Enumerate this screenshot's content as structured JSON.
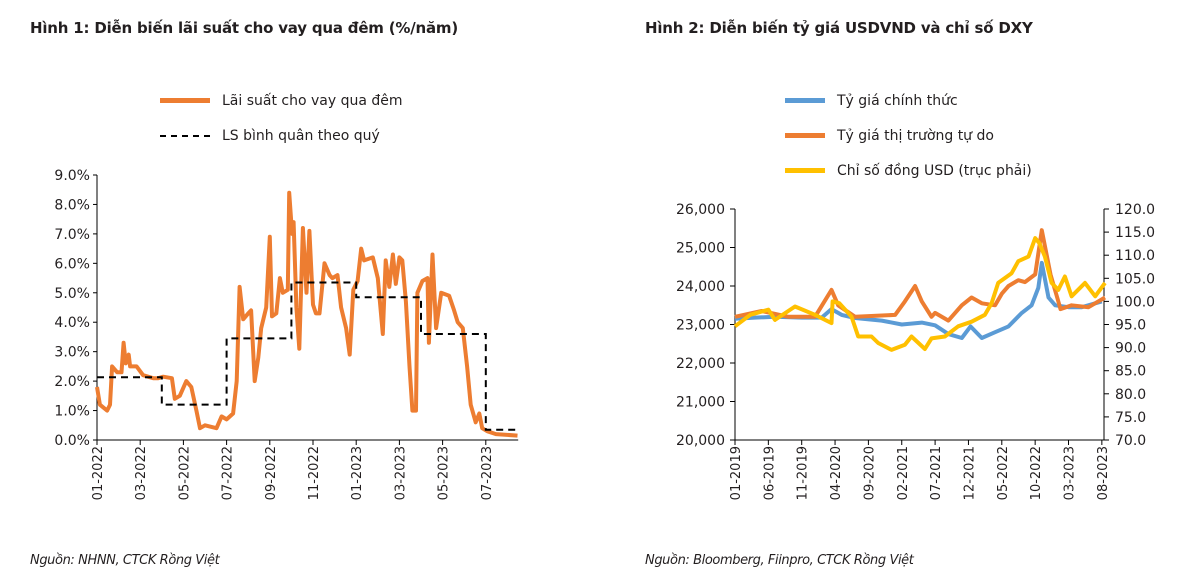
{
  "figure1": {
    "title": "Hình 1: Diễn biến lãi suất cho vay qua đêm (%/năm)",
    "source": "Nguồn: NHNN, CTCK Rồng Việt"
  },
  "figure2": {
    "title": "Hình 2: Diễn biến tỷ giá USDVND và chỉ số DXY",
    "source": "Nguồn: Bloomberg, Fiinpro, CTCK Rồng Việt"
  },
  "chart_data": [
    {
      "type": "line",
      "title": "Hình 1: Diễn biến lãi suất cho vay qua đêm (%/năm)",
      "xlabel": "",
      "ylabel": "",
      "ylim": [
        0,
        9
      ],
      "y_ticks": [
        "0.0%",
        "1.0%",
        "2.0%",
        "3.0%",
        "4.0%",
        "5.0%",
        "6.0%",
        "7.0%",
        "8.0%",
        "9.0%"
      ],
      "x_ticks": [
        "01-2022",
        "03-2022",
        "05-2022",
        "07-2022",
        "09-2022",
        "11-2022",
        "01-2023",
        "03-2023",
        "05-2023",
        "07-2023"
      ],
      "grid": false,
      "legend_position": "top",
      "series": [
        {
          "name": "Lãi suất cho vay qua đêm",
          "color": "#ed7d31",
          "style": "solid",
          "points": [
            [
              "2022-01-01",
              1.8
            ],
            [
              "2022-01-05",
              1.2
            ],
            [
              "2022-01-15",
              1.0
            ],
            [
              "2022-01-19",
              1.2
            ],
            [
              "2022-01-22",
              2.5
            ],
            [
              "2022-01-29",
              2.3
            ],
            [
              "2022-02-05",
              2.3
            ],
            [
              "2022-02-08",
              3.3
            ],
            [
              "2022-02-11",
              2.6
            ],
            [
              "2022-02-15",
              2.9
            ],
            [
              "2022-02-17",
              2.5
            ],
            [
              "2022-02-26",
              2.5
            ],
            [
              "2022-03-05",
              2.2
            ],
            [
              "2022-03-19",
              2.1
            ],
            [
              "2022-03-26",
              2.1
            ],
            [
              "2022-04-03",
              2.15
            ],
            [
              "2022-04-15",
              2.1
            ],
            [
              "2022-04-19",
              1.4
            ],
            [
              "2022-04-26",
              1.5
            ],
            [
              "2022-05-05",
              2.0
            ],
            [
              "2022-05-12",
              1.8
            ],
            [
              "2022-05-19",
              1.0
            ],
            [
              "2022-05-24",
              0.4
            ],
            [
              "2022-06-01",
              0.5
            ],
            [
              "2022-06-17",
              0.4
            ],
            [
              "2022-06-24",
              0.8
            ],
            [
              "2022-07-01",
              0.7
            ],
            [
              "2022-07-10",
              0.9
            ],
            [
              "2022-07-15",
              2.0
            ],
            [
              "2022-07-19",
              5.2
            ],
            [
              "2022-07-24",
              4.1
            ],
            [
              "2022-08-01",
              4.3
            ],
            [
              "2022-08-05",
              4.4
            ],
            [
              "2022-08-10",
              2.0
            ],
            [
              "2022-08-15",
              2.8
            ],
            [
              "2022-08-19",
              3.8
            ],
            [
              "2022-08-26",
              4.5
            ],
            [
              "2022-09-01",
              6.9
            ],
            [
              "2022-09-04",
              4.2
            ],
            [
              "2022-09-10",
              4.3
            ],
            [
              "2022-09-15",
              5.5
            ],
            [
              "2022-09-19",
              5.0
            ],
            [
              "2022-09-26",
              5.1
            ],
            [
              "2022-09-28",
              8.4
            ],
            [
              "2022-10-02",
              7.0
            ],
            [
              "2022-10-04",
              7.4
            ],
            [
              "2022-10-08",
              4.5
            ],
            [
              "2022-10-12",
              3.1
            ],
            [
              "2022-10-17",
              7.2
            ],
            [
              "2022-10-22",
              5.0
            ],
            [
              "2022-10-26",
              7.1
            ],
            [
              "2022-10-31",
              4.6
            ],
            [
              "2022-11-05",
              4.3
            ],
            [
              "2022-11-10",
              4.3
            ],
            [
              "2022-11-17",
              6.0
            ],
            [
              "2022-11-24",
              5.6
            ],
            [
              "2022-11-28",
              5.5
            ],
            [
              "2022-12-05",
              5.6
            ],
            [
              "2022-12-10",
              4.5
            ],
            [
              "2022-12-17",
              3.8
            ],
            [
              "2022-12-22",
              2.9
            ],
            [
              "2022-12-27",
              5.1
            ],
            [
              "2023-01-03",
              5.4
            ],
            [
              "2023-01-08",
              6.5
            ],
            [
              "2023-01-12",
              6.1
            ],
            [
              "2023-01-24",
              6.2
            ],
            [
              "2023-02-01",
              5.5
            ],
            [
              "2023-02-08",
              3.6
            ],
            [
              "2023-02-12",
              6.1
            ],
            [
              "2023-02-17",
              5.2
            ],
            [
              "2023-02-22",
              6.3
            ],
            [
              "2023-02-26",
              5.3
            ],
            [
              "2023-03-01",
              6.2
            ],
            [
              "2023-03-05",
              6.1
            ],
            [
              "2023-03-10",
              4.7
            ],
            [
              "2023-03-15",
              2.5
            ],
            [
              "2023-03-19",
              1.0
            ],
            [
              "2023-03-24",
              1.0
            ],
            [
              "2023-03-26",
              5.0
            ],
            [
              "2023-04-03",
              5.4
            ],
            [
              "2023-04-10",
              5.5
            ],
            [
              "2023-04-12",
              3.3
            ],
            [
              "2023-04-17",
              6.3
            ],
            [
              "2023-04-22",
              3.8
            ],
            [
              "2023-04-29",
              5.0
            ],
            [
              "2023-05-10",
              4.9
            ],
            [
              "2023-05-17",
              4.4
            ],
            [
              "2023-05-22",
              4.0
            ],
            [
              "2023-05-29",
              3.8
            ],
            [
              "2023-06-05",
              2.5
            ],
            [
              "2023-06-10",
              1.2
            ],
            [
              "2023-06-17",
              0.6
            ],
            [
              "2023-06-22",
              0.9
            ],
            [
              "2023-06-26",
              0.4
            ],
            [
              "2023-07-03",
              0.3
            ],
            [
              "2023-07-15",
              0.2
            ],
            [
              "2023-08-15",
              0.15
            ]
          ]
        },
        {
          "name": "LS bình quân theo quý",
          "color": "#000000",
          "style": "dashed",
          "steps": [
            [
              "2022-01-01",
              2.13
            ],
            [
              "2022-04-01",
              1.2
            ],
            [
              "2022-07-01",
              3.45
            ],
            [
              "2022-10-01",
              5.35
            ],
            [
              "2023-01-01",
              4.85
            ],
            [
              "2023-04-01",
              3.6
            ],
            [
              "2023-07-01",
              0.35
            ],
            [
              "2023-08-15",
              0.35
            ]
          ]
        }
      ]
    },
    {
      "type": "line",
      "title": "Hình 2: Diễn biến tỷ giá USDVND và chỉ số DXY",
      "xlabel": "",
      "ylabel": "",
      "ylim": [
        20000,
        26000
      ],
      "y2lim": [
        70,
        120
      ],
      "y_ticks": [
        "20,000",
        "21,000",
        "22,000",
        "23,000",
        "24,000",
        "25,000",
        "26,000"
      ],
      "y2_ticks": [
        "70.0",
        "75.0",
        "80.0",
        "85.0",
        "90.0",
        "95.0",
        "100.0",
        "105.0",
        "110.0",
        "115.0",
        "120.0"
      ],
      "x_ticks": [
        "01-2019",
        "06-2019",
        "11-2019",
        "04-2020",
        "09-2020",
        "02-2021",
        "07-2021",
        "12-2021",
        "05-2022",
        "10-2022",
        "03-2023",
        "08-2023"
      ],
      "grid": false,
      "legend_position": "top",
      "series": [
        {
          "name": "Tỷ giá chính thức",
          "color": "#5b9bd5",
          "axis": "left",
          "points": [
            [
              "2019-01-01",
              23150
            ],
            [
              "2019-04-01",
              23180
            ],
            [
              "2019-07-01",
              23200
            ],
            [
              "2019-11-01",
              23180
            ],
            [
              "2020-02-01",
              23180
            ],
            [
              "2020-03-15",
              23400
            ],
            [
              "2020-05-01",
              23250
            ],
            [
              "2020-07-01",
              23170
            ],
            [
              "2020-11-01",
              23100
            ],
            [
              "2021-02-01",
              23000
            ],
            [
              "2021-05-01",
              23050
            ],
            [
              "2021-07-01",
              22980
            ],
            [
              "2021-09-01",
              22750
            ],
            [
              "2021-11-01",
              22650
            ],
            [
              "2021-12-10",
              22950
            ],
            [
              "2022-02-01",
              22650
            ],
            [
              "2022-04-01",
              22800
            ],
            [
              "2022-06-01",
              22950
            ],
            [
              "2022-08-01",
              23300
            ],
            [
              "2022-09-15",
              23500
            ],
            [
              "2022-10-15",
              23950
            ],
            [
              "2022-11-01",
              24600
            ],
            [
              "2022-12-01",
              23700
            ],
            [
              "2023-01-01",
              23500
            ],
            [
              "2023-03-01",
              23450
            ],
            [
              "2023-05-01",
              23450
            ],
            [
              "2023-08-01",
              23600
            ]
          ]
        },
        {
          "name": "Tỷ giá thị trường tự do",
          "color": "#ed7d31",
          "axis": "left",
          "points": [
            [
              "2019-01-01",
              23200
            ],
            [
              "2019-05-01",
              23350
            ],
            [
              "2019-09-01",
              23200
            ],
            [
              "2020-01-01",
              23200
            ],
            [
              "2020-03-15",
              23900
            ],
            [
              "2020-04-15",
              23500
            ],
            [
              "2020-07-01",
              23200
            ],
            [
              "2021-01-01",
              23250
            ],
            [
              "2021-02-15",
              23600
            ],
            [
              "2021-04-01",
              24000
            ],
            [
              "2021-05-01",
              23600
            ],
            [
              "2021-06-15",
              23200
            ],
            [
              "2021-07-01",
              23300
            ],
            [
              "2021-09-01",
              23100
            ],
            [
              "2021-11-01",
              23500
            ],
            [
              "2021-12-15",
              23700
            ],
            [
              "2022-02-01",
              23550
            ],
            [
              "2022-04-01",
              23500
            ],
            [
              "2022-05-01",
              23800
            ],
            [
              "2022-06-01",
              24000
            ],
            [
              "2022-07-15",
              24150
            ],
            [
              "2022-08-15",
              24100
            ],
            [
              "2022-10-01",
              24300
            ],
            [
              "2022-11-01",
              25450
            ],
            [
              "2022-12-10",
              24300
            ],
            [
              "2023-01-10",
              23700
            ],
            [
              "2023-01-25",
              23400
            ],
            [
              "2023-03-15",
              23500
            ],
            [
              "2023-06-01",
              23450
            ],
            [
              "2023-08-15",
              23700
            ]
          ]
        },
        {
          "name": "Chỉ số đồng USD (trục phải)",
          "color": "#ffc000",
          "axis": "right",
          "points": [
            [
              "2019-01-01",
              94.6
            ],
            [
              "2019-03-10",
              97.1
            ],
            [
              "2019-06-01",
              98.2
            ],
            [
              "2019-07-01",
              96.0
            ],
            [
              "2019-10-01",
              98.9
            ],
            [
              "2020-01-01",
              97.1
            ],
            [
              "2020-03-15",
              95.3
            ],
            [
              "2020-03-20",
              100.0
            ],
            [
              "2020-04-20",
              99.6
            ],
            [
              "2020-06-15",
              96.7
            ],
            [
              "2020-07-15",
              92.4
            ],
            [
              "2020-09-15",
              92.4
            ],
            [
              "2020-10-15",
              91.0
            ],
            [
              "2020-12-15",
              89.5
            ],
            [
              "2021-02-15",
              90.6
            ],
            [
              "2021-03-15",
              92.4
            ],
            [
              "2021-05-15",
              89.7
            ],
            [
              "2021-06-15",
              92.0
            ],
            [
              "2021-08-15",
              92.4
            ],
            [
              "2021-10-15",
              94.6
            ],
            [
              "2021-12-15",
              95.6
            ],
            [
              "2022-02-15",
              97.1
            ],
            [
              "2022-03-15",
              99.6
            ],
            [
              "2022-04-15",
              104.0
            ],
            [
              "2022-06-15",
              106.1
            ],
            [
              "2022-07-15",
              108.7
            ],
            [
              "2022-09-01",
              109.7
            ],
            [
              "2022-10-01",
              113.7
            ],
            [
              "2022-10-20",
              112.6
            ],
            [
              "2022-11-15",
              109.7
            ],
            [
              "2022-12-15",
              104.0
            ],
            [
              "2023-01-15",
              102.5
            ],
            [
              "2023-02-15",
              105.4
            ],
            [
              "2023-03-15",
              101.1
            ],
            [
              "2023-05-15",
              104.0
            ],
            [
              "2023-07-01",
              101.1
            ],
            [
              "2023-08-15",
              104.0
            ]
          ]
        }
      ]
    }
  ]
}
